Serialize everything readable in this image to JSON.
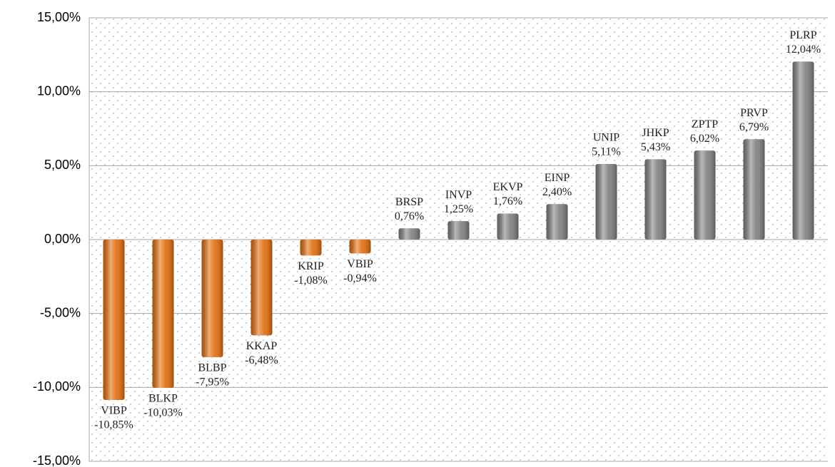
{
  "chart_data": {
    "type": "bar",
    "categories": [
      "VIBP",
      "BLKP",
      "BLBP",
      "KKAP",
      "KRIP",
      "VBIP",
      "BRSP",
      "INVP",
      "EKVP",
      "EINP",
      "UNIP",
      "JHKP",
      "ZPTP",
      "PRVP",
      "PLRP"
    ],
    "values": [
      -10.85,
      -10.03,
      -7.95,
      -6.48,
      -1.08,
      -0.94,
      0.76,
      1.25,
      1.76,
      2.4,
      5.11,
      5.43,
      6.02,
      6.79,
      12.04
    ],
    "value_labels": [
      "-10,85%",
      "-10,03%",
      "-7,95%",
      "-6,48%",
      "-1,08%",
      "-0,94%",
      "0,76%",
      "1,25%",
      "1,76%",
      "2,40%",
      "5,11%",
      "5,43%",
      "6,02%",
      "6,79%",
      "12,04%"
    ],
    "negative_color": "#e36c0a",
    "positive_color": "#7f7f7f",
    "ylim": [
      -15,
      15
    ],
    "yticks": [
      {
        "value": -15,
        "label": "-15,00%"
      },
      {
        "value": -10,
        "label": "-10,00%"
      },
      {
        "value": -5,
        "label": "-5,00%"
      },
      {
        "value": 0,
        "label": "0,00%"
      },
      {
        "value": 5,
        "label": "5,00%"
      },
      {
        "value": 10,
        "label": "10,00%"
      },
      {
        "value": 15,
        "label": "15,00%"
      }
    ],
    "grid": true
  }
}
